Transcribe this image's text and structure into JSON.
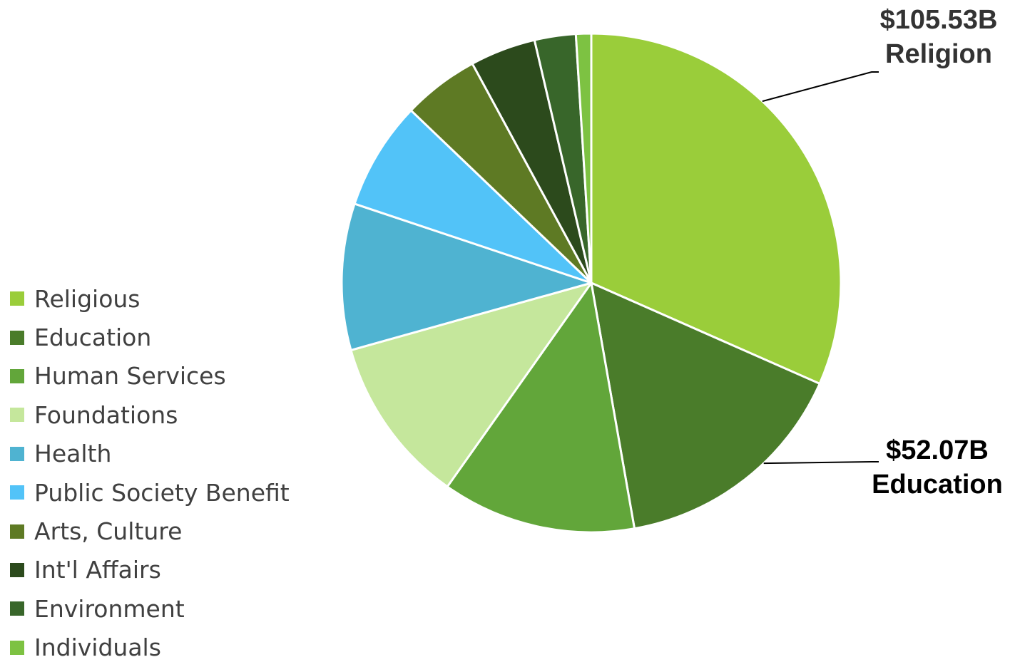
{
  "chart_data": {
    "type": "pie",
    "categories": [
      "Religious",
      "Education",
      "Human Services",
      "Foundations",
      "Health",
      "Public Society Benefit",
      "Arts, Culture",
      "Int'l Affairs",
      "Environment",
      "Individuals"
    ],
    "values": [
      32.0,
      15.8,
      12.7,
      11.0,
      9.6,
      7.1,
      5.0,
      4.3,
      2.7,
      1.0
    ],
    "value_unit": "percent of total (estimated from slice angles)",
    "colors": [
      "#9ACD3A",
      "#4A7C2A",
      "#62A63A",
      "#C5E79C",
      "#4FB3D1",
      "#52C3F8",
      "#5E7A24",
      "#2C4A1C",
      "#38662A",
      "#7DC242"
    ],
    "legend": [
      "Religious",
      "Education",
      "Human Services",
      "Foundations",
      "Health",
      "Public Society Benefit",
      "Arts, Culture",
      "Int'l Affairs",
      "Environment",
      "Individuals"
    ],
    "legend_position": "left",
    "annotations": [
      {
        "category": "Religious",
        "value_label": "$105.53B",
        "name_label": "Religion"
      },
      {
        "category": "Education",
        "value_label": "$52.07B",
        "name_label": "Education"
      }
    ]
  }
}
